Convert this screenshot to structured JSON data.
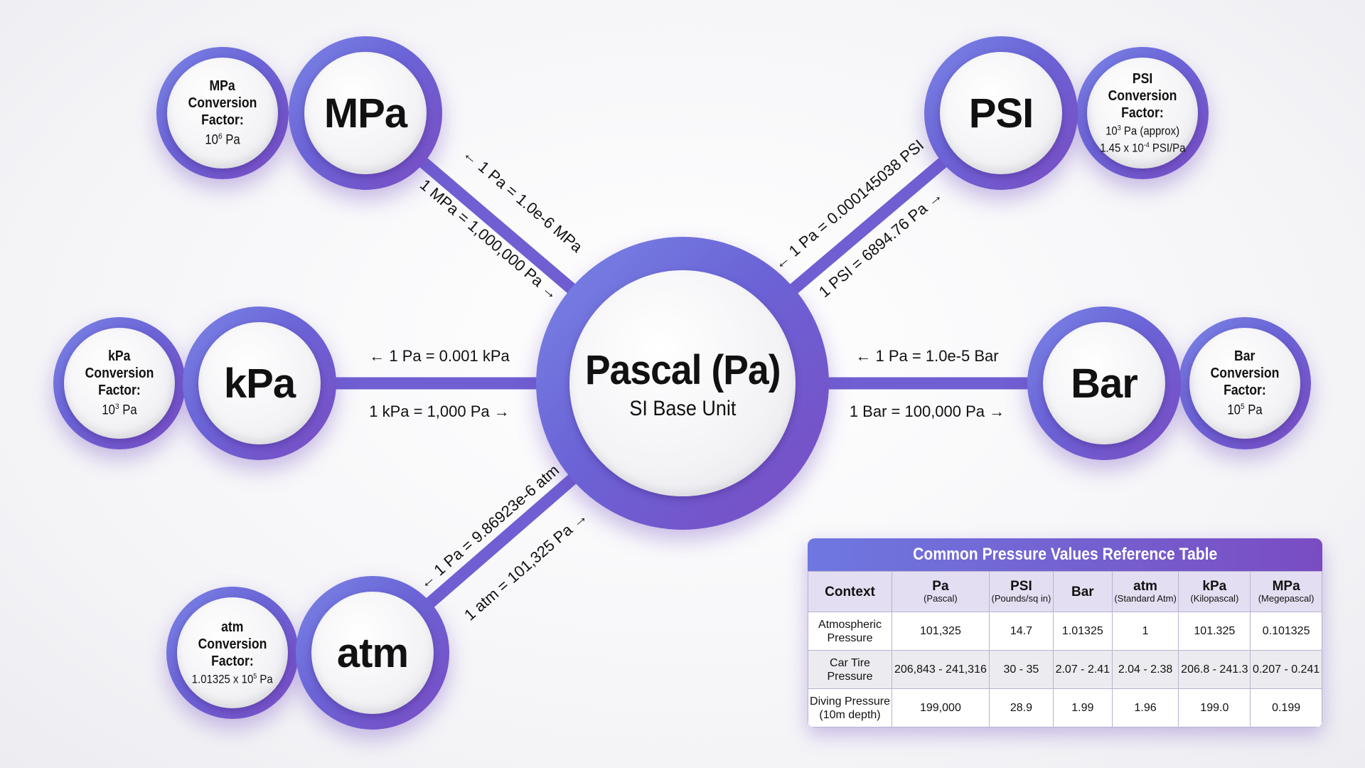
{
  "center": {
    "title": "Pascal (Pa)",
    "subtitle": "SI Base Unit"
  },
  "units": {
    "mpa": {
      "name": "MPa",
      "factor_title": [
        "MPa",
        "Conversion",
        "Factor:"
      ],
      "factor_base": "10",
      "factor_exp": "6",
      "factor_suffix": " Pa",
      "to_unit": "← 1 Pa = 1.0e-6 MPa",
      "to_pa": "1 MPa = 1,000,000 Pa →"
    },
    "psi": {
      "name": "PSI",
      "factor_title": [
        "PSI",
        "Conversion",
        "Factor:"
      ],
      "factor_base": "10",
      "factor_exp": "3",
      "factor_suffix": " Pa (approx)",
      "factor2_base": "1.45 x 10",
      "factor2_exp": "-4",
      "factor2_suffix": " PSI/Pa",
      "to_unit": "← 1 Pa = 0.000145038 PSI",
      "to_pa": "1 PSI = 6894.76 Pa →"
    },
    "kpa": {
      "name": "kPa",
      "factor_title": [
        "kPa",
        "Conversion",
        "Factor:"
      ],
      "factor_base": "10",
      "factor_exp": "3",
      "factor_suffix": " Pa",
      "to_unit": "← 1 Pa = 0.001 kPa",
      "to_pa": "1 kPa = 1,000 Pa →"
    },
    "bar": {
      "name": "Bar",
      "factor_title": [
        "Bar",
        "Conversion",
        "Factor:"
      ],
      "factor_base": "10",
      "factor_exp": "5",
      "factor_suffix": " Pa",
      "to_unit": "← 1 Pa = 1.0e-5 Bar",
      "to_pa": "1 Bar = 100,000 Pa →"
    },
    "atm": {
      "name": "atm",
      "factor_title": [
        "atm",
        "Conversion",
        "Factor:"
      ],
      "factor_base": "1.01325 x 10",
      "factor_exp": "5",
      "factor_suffix": " Pa",
      "to_unit": "← 1 Pa = 9.86923e-6 atm",
      "to_pa": "1 atm = 101,325 Pa →"
    }
  },
  "colors": {
    "ring_start": "#7a86e6",
    "ring_end": "#7a4cc2",
    "connector": "#6f5fd2"
  },
  "table": {
    "title": "Common Pressure Values Reference Table",
    "headers": [
      {
        "label": "Context",
        "sub": ""
      },
      {
        "label": "Pa",
        "sub": "(Pascal)"
      },
      {
        "label": "PSI",
        "sub": "(Pounds/sq in)"
      },
      {
        "label": "Bar",
        "sub": ""
      },
      {
        "label": "atm",
        "sub": "(Standard Atm)"
      },
      {
        "label": "kPa",
        "sub": "(Kilopascal)"
      },
      {
        "label": "MPa",
        "sub": "(Megepascal)"
      }
    ],
    "rows": [
      [
        "Atmospheric Pressure",
        "101,325",
        "14.7",
        "1.01325",
        "1",
        "101.325",
        "0.101325"
      ],
      [
        "Car Tire Pressure",
        "206,843 - 241,316",
        "30 - 35",
        "2.07 - 2.41",
        "2.04 - 2.38",
        "206.8 - 241.3",
        "0.207 - 0.241"
      ],
      [
        "Diving Pressure (10m depth)",
        "199,000",
        "28.9",
        "1.99",
        "1.96",
        "199.0",
        "0.199"
      ]
    ]
  }
}
